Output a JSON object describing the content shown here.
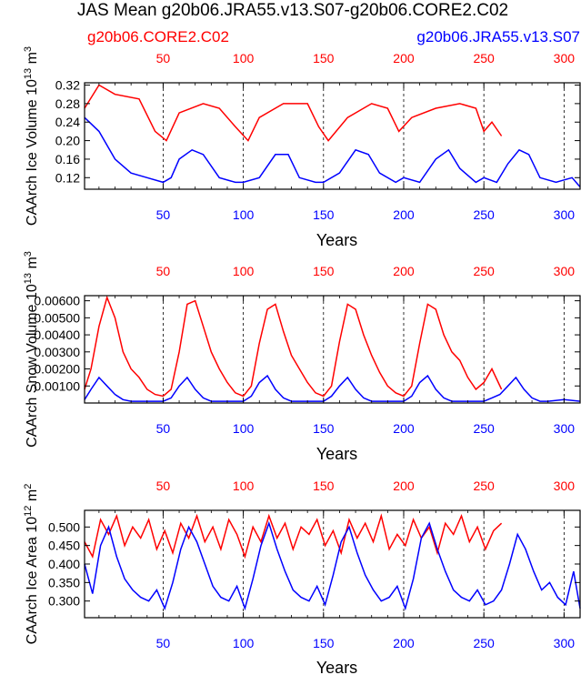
{
  "title": "JAS Mean g20b06.JRA55.v13.S07-g20b06.CORE2.C02",
  "legend": {
    "red": "g20b06.CORE2.C02",
    "blue": "g20b06.JRA55.v13.S07"
  },
  "colors": {
    "red": "#ff0000",
    "blue": "#0000ff",
    "axis": "#000000"
  },
  "chart_data": [
    {
      "type": "line",
      "ylabel_main": "CAArch Ice Volume 10",
      "ylabel_exp": "13",
      "ylabel_unit": " m",
      "ylabel_unit_exp": "3",
      "xlabel": "Years",
      "xlim": [
        1,
        310
      ],
      "ylim": [
        0.095,
        0.325
      ],
      "yticks": [
        "0.12",
        "0.16",
        "0.20",
        "0.24",
        "0.28",
        "0.32"
      ],
      "yvals": [
        0.12,
        0.16,
        0.2,
        0.24,
        0.28,
        0.32
      ],
      "xticks_bottom": [
        "50",
        "100",
        "150",
        "200",
        "250",
        "300"
      ],
      "xticks_top": [
        "50",
        "100",
        "150",
        "200",
        "250",
        "300"
      ],
      "series": [
        {
          "name": "g20b06.CORE2.C02",
          "color": "red",
          "x": [
            1,
            10,
            20,
            35,
            45,
            52,
            60,
            75,
            85,
            95,
            103,
            110,
            125,
            140,
            147,
            153,
            165,
            180,
            190,
            197,
            205,
            220,
            235,
            245,
            250,
            255,
            261
          ],
          "values": [
            0.27,
            0.32,
            0.3,
            0.29,
            0.22,
            0.2,
            0.26,
            0.28,
            0.27,
            0.23,
            0.2,
            0.25,
            0.28,
            0.28,
            0.23,
            0.2,
            0.25,
            0.28,
            0.27,
            0.22,
            0.25,
            0.27,
            0.28,
            0.27,
            0.22,
            0.24,
            0.21
          ]
        },
        {
          "name": "g20b06.JRA55.v13.S07",
          "color": "blue",
          "x": [
            1,
            10,
            20,
            30,
            40,
            50,
            55,
            60,
            68,
            75,
            85,
            95,
            100,
            110,
            120,
            128,
            135,
            145,
            150,
            160,
            170,
            178,
            185,
            195,
            200,
            210,
            220,
            228,
            235,
            245,
            250,
            258,
            265,
            272,
            278,
            285,
            295,
            305,
            310
          ],
          "values": [
            0.25,
            0.22,
            0.16,
            0.13,
            0.12,
            0.11,
            0.12,
            0.16,
            0.18,
            0.17,
            0.12,
            0.11,
            0.11,
            0.12,
            0.17,
            0.17,
            0.12,
            0.11,
            0.11,
            0.13,
            0.18,
            0.17,
            0.13,
            0.11,
            0.12,
            0.11,
            0.16,
            0.18,
            0.14,
            0.11,
            0.12,
            0.11,
            0.15,
            0.18,
            0.17,
            0.12,
            0.11,
            0.12,
            0.1
          ]
        }
      ]
    },
    {
      "type": "line",
      "ylabel_main": "CAArch Snow Volume 10",
      "ylabel_exp": "13",
      "ylabel_unit": " m",
      "ylabel_unit_exp": "3",
      "xlabel": "Years",
      "xlim": [
        1,
        310
      ],
      "ylim": [
        0.0,
        0.0063
      ],
      "yticks": [
        "0.00100",
        "0.00200",
        "0.00300",
        "0.00400",
        "0.00500",
        "0.00600"
      ],
      "yvals": [
        0.001,
        0.002,
        0.003,
        0.004,
        0.005,
        0.006
      ],
      "xticks_bottom": [
        "50",
        "100",
        "150",
        "200",
        "250",
        "300"
      ],
      "xticks_top": [
        "50",
        "100",
        "150",
        "200",
        "250",
        "300"
      ],
      "series": [
        {
          "name": "g20b06.CORE2.C02",
          "color": "red",
          "x": [
            1,
            5,
            10,
            15,
            20,
            25,
            30,
            35,
            40,
            45,
            50,
            55,
            60,
            65,
            70,
            75,
            80,
            85,
            90,
            95,
            100,
            105,
            110,
            115,
            120,
            125,
            130,
            135,
            140,
            145,
            150,
            155,
            160,
            165,
            170,
            175,
            180,
            185,
            190,
            195,
            200,
            205,
            210,
            215,
            220,
            225,
            230,
            235,
            240,
            245,
            250,
            255,
            261
          ],
          "values": [
            0.0008,
            0.002,
            0.0045,
            0.0062,
            0.005,
            0.003,
            0.002,
            0.0015,
            0.0008,
            0.0005,
            0.0004,
            0.0008,
            0.003,
            0.0058,
            0.006,
            0.0045,
            0.003,
            0.002,
            0.0012,
            0.0006,
            0.0004,
            0.001,
            0.0035,
            0.0055,
            0.0058,
            0.0042,
            0.0028,
            0.002,
            0.0012,
            0.0006,
            0.0004,
            0.001,
            0.0036,
            0.0058,
            0.0055,
            0.004,
            0.0028,
            0.0018,
            0.001,
            0.0006,
            0.0004,
            0.001,
            0.0035,
            0.0058,
            0.0055,
            0.004,
            0.003,
            0.0025,
            0.0015,
            0.0008,
            0.0012,
            0.002,
            0.0008
          ]
        },
        {
          "name": "g20b06.JRA55.v13.S07",
          "color": "blue",
          "x": [
            1,
            5,
            10,
            15,
            20,
            25,
            30,
            40,
            50,
            55,
            60,
            65,
            70,
            75,
            80,
            90,
            100,
            105,
            110,
            115,
            120,
            125,
            130,
            140,
            150,
            155,
            160,
            165,
            170,
            175,
            180,
            190,
            200,
            205,
            210,
            215,
            220,
            225,
            230,
            240,
            250,
            255,
            260,
            265,
            270,
            275,
            280,
            285,
            290,
            300,
            310
          ],
          "values": [
            0.0002,
            0.0008,
            0.0015,
            0.001,
            0.0005,
            0.0002,
            0.0001,
            0.0001,
            0.0001,
            0.0003,
            0.001,
            0.0015,
            0.0008,
            0.0003,
            0.0001,
            0.0001,
            0.0001,
            0.0004,
            0.0012,
            0.0016,
            0.0008,
            0.0003,
            0.0001,
            0.0001,
            0.0001,
            0.0004,
            0.001,
            0.0015,
            0.0008,
            0.0003,
            0.0001,
            0.0001,
            0.0001,
            0.0004,
            0.0012,
            0.0016,
            0.0008,
            0.0003,
            0.0001,
            0.0001,
            0.0001,
            0.0003,
            0.0005,
            0.001,
            0.0015,
            0.0008,
            0.0003,
            0.0001,
            0.0001,
            0.0002,
            0.0001
          ]
        }
      ]
    },
    {
      "type": "line",
      "ylabel_main": "CAArch Ice Area 10",
      "ylabel_exp": "12",
      "ylabel_unit": " m",
      "ylabel_unit_exp": "2",
      "xlabel": "Years",
      "xlim": [
        1,
        310
      ],
      "ylim": [
        0.255,
        0.545
      ],
      "yticks": [
        "0.300",
        "0.350",
        "0.400",
        "0.450",
        "0.500"
      ],
      "yvals": [
        0.3,
        0.35,
        0.4,
        0.45,
        0.5
      ],
      "xticks_bottom": [
        "50",
        "100",
        "150",
        "200",
        "250",
        "300"
      ],
      "xticks_top": [
        "50",
        "100",
        "150",
        "200",
        "250",
        "300"
      ],
      "series": [
        {
          "name": "g20b06.CORE2.C02",
          "color": "red",
          "x": [
            1,
            6,
            11,
            16,
            21,
            26,
            31,
            36,
            41,
            46,
            51,
            56,
            61,
            66,
            71,
            76,
            81,
            86,
            91,
            96,
            101,
            106,
            111,
            116,
            121,
            126,
            131,
            136,
            141,
            146,
            151,
            156,
            161,
            166,
            171,
            176,
            181,
            186,
            191,
            196,
            201,
            206,
            211,
            216,
            221,
            226,
            231,
            236,
            241,
            246,
            251,
            256,
            261
          ],
          "values": [
            0.46,
            0.42,
            0.52,
            0.48,
            0.53,
            0.45,
            0.5,
            0.47,
            0.52,
            0.44,
            0.49,
            0.43,
            0.51,
            0.47,
            0.53,
            0.46,
            0.5,
            0.44,
            0.52,
            0.48,
            0.42,
            0.5,
            0.46,
            0.53,
            0.47,
            0.51,
            0.44,
            0.5,
            0.48,
            0.52,
            0.45,
            0.49,
            0.43,
            0.52,
            0.47,
            0.51,
            0.46,
            0.53,
            0.44,
            0.48,
            0.45,
            0.52,
            0.47,
            0.5,
            0.43,
            0.51,
            0.48,
            0.53,
            0.46,
            0.5,
            0.44,
            0.49,
            0.51
          ]
        },
        {
          "name": "g20b06.JRA55.v13.S07",
          "color": "blue",
          "x": [
            1,
            6,
            11,
            16,
            21,
            26,
            31,
            36,
            41,
            46,
            51,
            56,
            61,
            66,
            71,
            76,
            81,
            86,
            91,
            96,
            101,
            106,
            111,
            116,
            121,
            126,
            131,
            136,
            141,
            146,
            151,
            156,
            161,
            166,
            171,
            176,
            181,
            186,
            191,
            196,
            201,
            206,
            211,
            216,
            221,
            226,
            231,
            236,
            241,
            246,
            251,
            256,
            261,
            266,
            271,
            276,
            281,
            286,
            291,
            296,
            301,
            306,
            310
          ],
          "values": [
            0.4,
            0.32,
            0.45,
            0.5,
            0.42,
            0.36,
            0.33,
            0.31,
            0.3,
            0.33,
            0.28,
            0.35,
            0.44,
            0.5,
            0.46,
            0.4,
            0.34,
            0.31,
            0.3,
            0.34,
            0.28,
            0.36,
            0.45,
            0.51,
            0.44,
            0.38,
            0.33,
            0.31,
            0.3,
            0.34,
            0.29,
            0.37,
            0.46,
            0.5,
            0.43,
            0.37,
            0.33,
            0.3,
            0.31,
            0.34,
            0.28,
            0.36,
            0.47,
            0.51,
            0.44,
            0.38,
            0.33,
            0.31,
            0.3,
            0.33,
            0.29,
            0.3,
            0.33,
            0.4,
            0.48,
            0.44,
            0.38,
            0.33,
            0.35,
            0.31,
            0.29,
            0.38,
            0.28
          ]
        }
      ]
    }
  ]
}
